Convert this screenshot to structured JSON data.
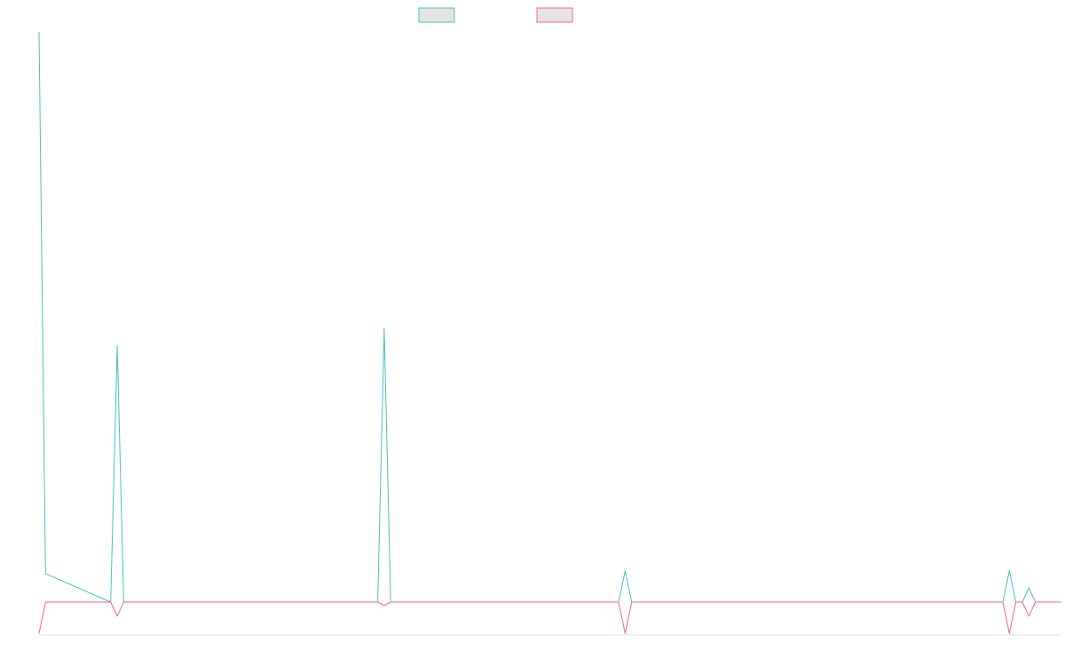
{
  "chart_data": {
    "type": "line",
    "title": "",
    "xlabel": "",
    "ylabel": "",
    "legend_position": "top-center",
    "grid": false,
    "x_count": 158,
    "ylim": [
      -1,
      10
    ],
    "series": [
      {
        "color": "#4bc0c0",
        "fill": "#e4e4e4",
        "points": [
          [
            0,
            10
          ],
          [
            1,
            0.5
          ],
          [
            11,
            0
          ],
          [
            12,
            4.5
          ],
          [
            13,
            0
          ],
          [
            52,
            0
          ],
          [
            53,
            4.8
          ],
          [
            54,
            0
          ],
          [
            89,
            0
          ],
          [
            90,
            0.55
          ],
          [
            91,
            0
          ],
          [
            148,
            0
          ],
          [
            149,
            0.55
          ],
          [
            150,
            0
          ],
          [
            151,
            0
          ],
          [
            152,
            0.25
          ],
          [
            153,
            0
          ],
          [
            157,
            0
          ]
        ]
      },
      {
        "color": "#ff6384",
        "fill": "#e4e4e4",
        "points": [
          [
            0,
            -0.55
          ],
          [
            1,
            0
          ],
          [
            11,
            0
          ],
          [
            12,
            -0.25
          ],
          [
            13,
            0
          ],
          [
            52,
            0
          ],
          [
            53,
            -0.06
          ],
          [
            54,
            0
          ],
          [
            89,
            0
          ],
          [
            90,
            -0.55
          ],
          [
            91,
            0
          ],
          [
            148,
            0
          ],
          [
            149,
            -0.55
          ],
          [
            150,
            0
          ],
          [
            151,
            0
          ],
          [
            152,
            -0.25
          ],
          [
            153,
            0
          ],
          [
            157,
            0
          ]
        ]
      }
    ]
  }
}
